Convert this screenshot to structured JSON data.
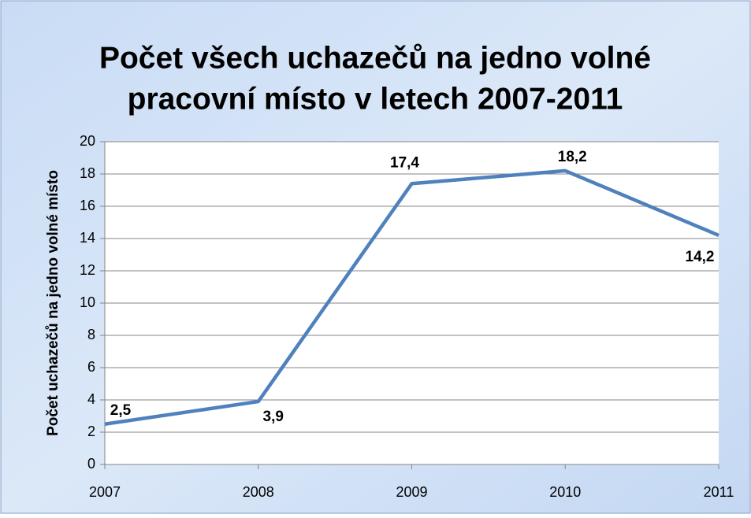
{
  "chart_data": {
    "type": "line",
    "title": [
      "Počet všech uchazečů na jedno volné",
      "pracovní místo v letech 2007-2011"
    ],
    "y_label": "Počet uchazečů na jedno volné místo",
    "categories": [
      "2007",
      "2008",
      "2009",
      "2010",
      "2011"
    ],
    "series": [
      {
        "name": "Počet uchazečů",
        "color": "#4f81bd",
        "values": [
          2.5,
          3.9,
          17.4,
          18.2,
          14.2
        ],
        "value_labels": [
          "2,5",
          "3,9",
          "17,4",
          "18,2",
          "14,2"
        ]
      }
    ],
    "ylim": [
      0,
      20
    ],
    "yticks": [
      0,
      2,
      4,
      6,
      8,
      10,
      12,
      14,
      16,
      18,
      20
    ],
    "grid": true,
    "legend": false
  }
}
